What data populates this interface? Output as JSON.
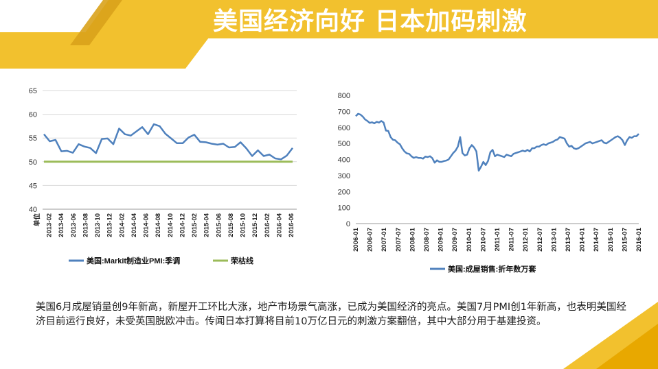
{
  "page": {
    "title": "美国经济向好 日本加码刺激",
    "body_text": "美国6月成屋销量创9年新高，新屋开工环比大涨，地产市场景气高涨，已成为美国经济的亮点。美国7月PMI创1年新高，也表明美国经济目前运行良好，未受英国脱欧冲击。传闻日本打算将目前10万亿日元的刺激方案翻倍，其中大部分用于基建投资。",
    "colors": {
      "accent": "#F2C12E",
      "accent_dark": "#D9A21B",
      "series": "#4F81BD",
      "threshold": "#9BBB59"
    }
  },
  "chart_data": [
    {
      "type": "line",
      "ylim": [
        40,
        65
      ],
      "yticks": [
        40,
        45,
        50,
        55,
        60,
        65
      ],
      "grid": true,
      "legend_placement": "bottom",
      "x_first_label": "单位",
      "x_labels": [
        "2013-02",
        "2013-04",
        "2013-06",
        "2013-08",
        "2013-10",
        "2013-12",
        "2014-02",
        "2014-04",
        "2014-06",
        "2014-08",
        "2014-10",
        "2014-12",
        "2015-02",
        "2015-04",
        "2015-06",
        "2015-08",
        "2015-10",
        "2015-12",
        "2016-02",
        "2016-04",
        "2016-06"
      ],
      "series": [
        {
          "name": "美国:Markit制造业PMI:季调",
          "color": "#4F81BD",
          "values": [
            55.8,
            54.3,
            54.6,
            52.2,
            52.3,
            51.9,
            53.7,
            53.2,
            52.9,
            51.8,
            54.8,
            54.9,
            53.7,
            57.0,
            55.8,
            55.5,
            56.4,
            57.3,
            55.8,
            57.9,
            57.5,
            55.9,
            54.9,
            53.9,
            53.9,
            55.1,
            55.7,
            54.2,
            54.1,
            53.8,
            53.6,
            53.8,
            53.0,
            53.1,
            54.1,
            52.8,
            51.2,
            52.4,
            51.2,
            51.5,
            50.7,
            50.5,
            51.3,
            52.9
          ]
        },
        {
          "name": "荣枯线",
          "color": "#9BBB59",
          "values": [
            50,
            50
          ]
        }
      ]
    },
    {
      "type": "line",
      "ylim": [
        0,
        800
      ],
      "yticks": [
        0,
        100,
        200,
        300,
        400,
        500,
        600,
        700,
        800
      ],
      "grid": false,
      "legend_placement": "bottom",
      "x_labels": [
        "2006-01",
        "2006-07",
        "2007-01",
        "2007-07",
        "2008-01",
        "2008-07",
        "2009-01",
        "2009-07",
        "2010-01",
        "2010-07",
        "2011-01",
        "2011-07",
        "2012-01",
        "2012-07",
        "2013-01",
        "2013-07",
        "2014-01",
        "2014-07",
        "2015-01",
        "2015-07",
        "2016-01"
      ],
      "series": [
        {
          "name": "美国:成屋销售:折年数万套",
          "color": "#4F81BD",
          "values": [
            670,
            685,
            680,
            668,
            650,
            640,
            628,
            632,
            625,
            635,
            630,
            640,
            630,
            580,
            578,
            540,
            523,
            520,
            505,
            495,
            470,
            450,
            438,
            435,
            420,
            410,
            415,
            410,
            410,
            405,
            418,
            415,
            420,
            408,
            380,
            395,
            385,
            385,
            390,
            393,
            400,
            420,
            440,
            455,
            480,
            540,
            440,
            425,
            430,
            470,
            490,
            475,
            450,
            330,
            355,
            385,
            365,
            390,
            445,
            460,
            420,
            430,
            425,
            420,
            415,
            430,
            425,
            420,
            435,
            440,
            445,
            450,
            455,
            450,
            460,
            450,
            470,
            470,
            480,
            480,
            490,
            495,
            490,
            500,
            505,
            510,
            520,
            525,
            540,
            535,
            530,
            500,
            480,
            485,
            470,
            465,
            470,
            480,
            490,
            500,
            505,
            510,
            500,
            505,
            510,
            515,
            520,
            505,
            500,
            510,
            520,
            530,
            540,
            545,
            535,
            520,
            490,
            520,
            540,
            535,
            545,
            545,
            560
          ]
        }
      ]
    }
  ]
}
